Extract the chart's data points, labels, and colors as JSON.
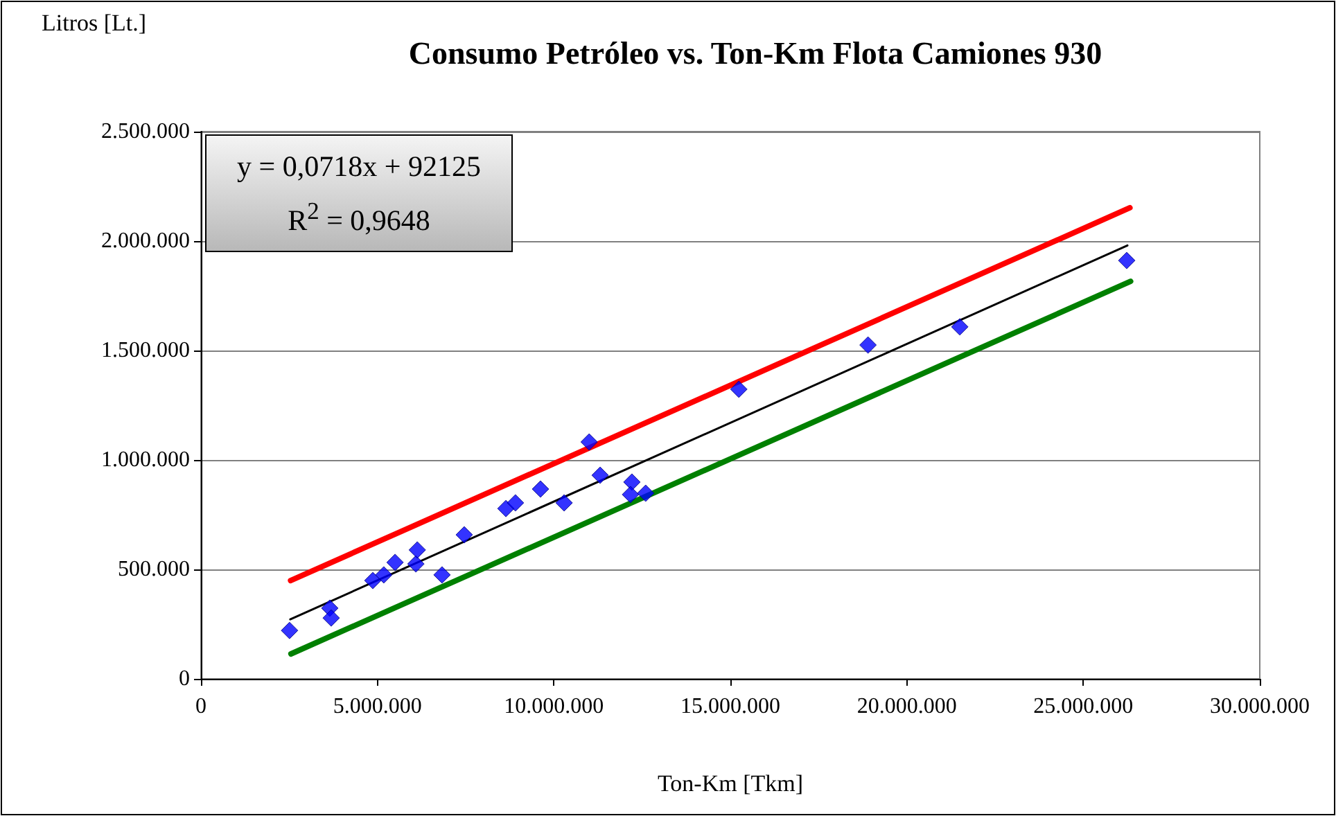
{
  "chart_data": {
    "type": "scatter",
    "title": "Consumo Petróleo vs. Ton-Km Flota Camiones 930",
    "xlabel": "Ton-Km [Tkm]",
    "ylabel": "Litros [Lt.]",
    "annotations": [
      "y = 0,0718x + 92125",
      "R$^{2}$ = 0,9648"
    ],
    "x": [
      2510000,
      3650000,
      3690000,
      4870000,
      5180000,
      5500000,
      6090000,
      6130000,
      6830000,
      7460000,
      8640000,
      8910000,
      9620000,
      10290000,
      11000000,
      11310000,
      12210000,
      12170000,
      12600000,
      15240000,
      18900000,
      21500000,
      26230000
    ],
    "series": [
      {
        "color": "#0000ff",
        "marker": "diamond",
        "values": [
          221000,
          323000,
          278000,
          449000,
          475000,
          532000,
          525000,
          589000,
          475000,
          658000,
          778000,
          804000,
          867000,
          804000,
          1082000,
          930000,
          899000,
          842000,
          848000,
          1323000,
          1525000,
          1608000,
          1911000
        ]
      },
      {
        "type": "line",
        "color": "#ff0000",
        "marker": "none",
        "line_style": "solid",
        "x": [
          2540000,
          26320000
        ],
        "values": [
          449000,
          2152000
        ]
      },
      {
        "type": "line",
        "color": "#000000",
        "marker": "none",
        "line_style": "solid",
        "x": [
          2530000,
          26250000
        ],
        "values": [
          272000,
          1980000
        ]
      },
      {
        "type": "line",
        "color": "#008000",
        "marker": "none",
        "line_style": "solid",
        "x": [
          2550000,
          26340000
        ],
        "values": [
          114000,
          1816000
        ]
      }
    ],
    "xlim": [
      0,
      30000000
    ],
    "ylim": [
      0,
      2500000
    ],
    "xticks": [
      {
        "value": 0,
        "label": "0"
      },
      {
        "value": 5000000,
        "label": "5.000.000"
      },
      {
        "value": 10000000,
        "label": "10.000.000"
      },
      {
        "value": 15000000,
        "label": "15.000.000"
      },
      {
        "value": 20000000,
        "label": "20.000.000"
      },
      {
        "value": 25000000,
        "label": "25.000.000"
      },
      {
        "value": 30000000,
        "label": "30.000.000"
      }
    ],
    "yticks": [
      {
        "value": 0,
        "label": "0"
      },
      {
        "value": 500000,
        "label": "500.000"
      },
      {
        "value": 1000000,
        "label": "1.000.000"
      },
      {
        "value": 1500000,
        "label": "1.500.000"
      },
      {
        "value": 2000000,
        "label": "2.000.000"
      },
      {
        "value": 2500000,
        "label": "2.500.000"
      }
    ],
    "grid": "y"
  }
}
